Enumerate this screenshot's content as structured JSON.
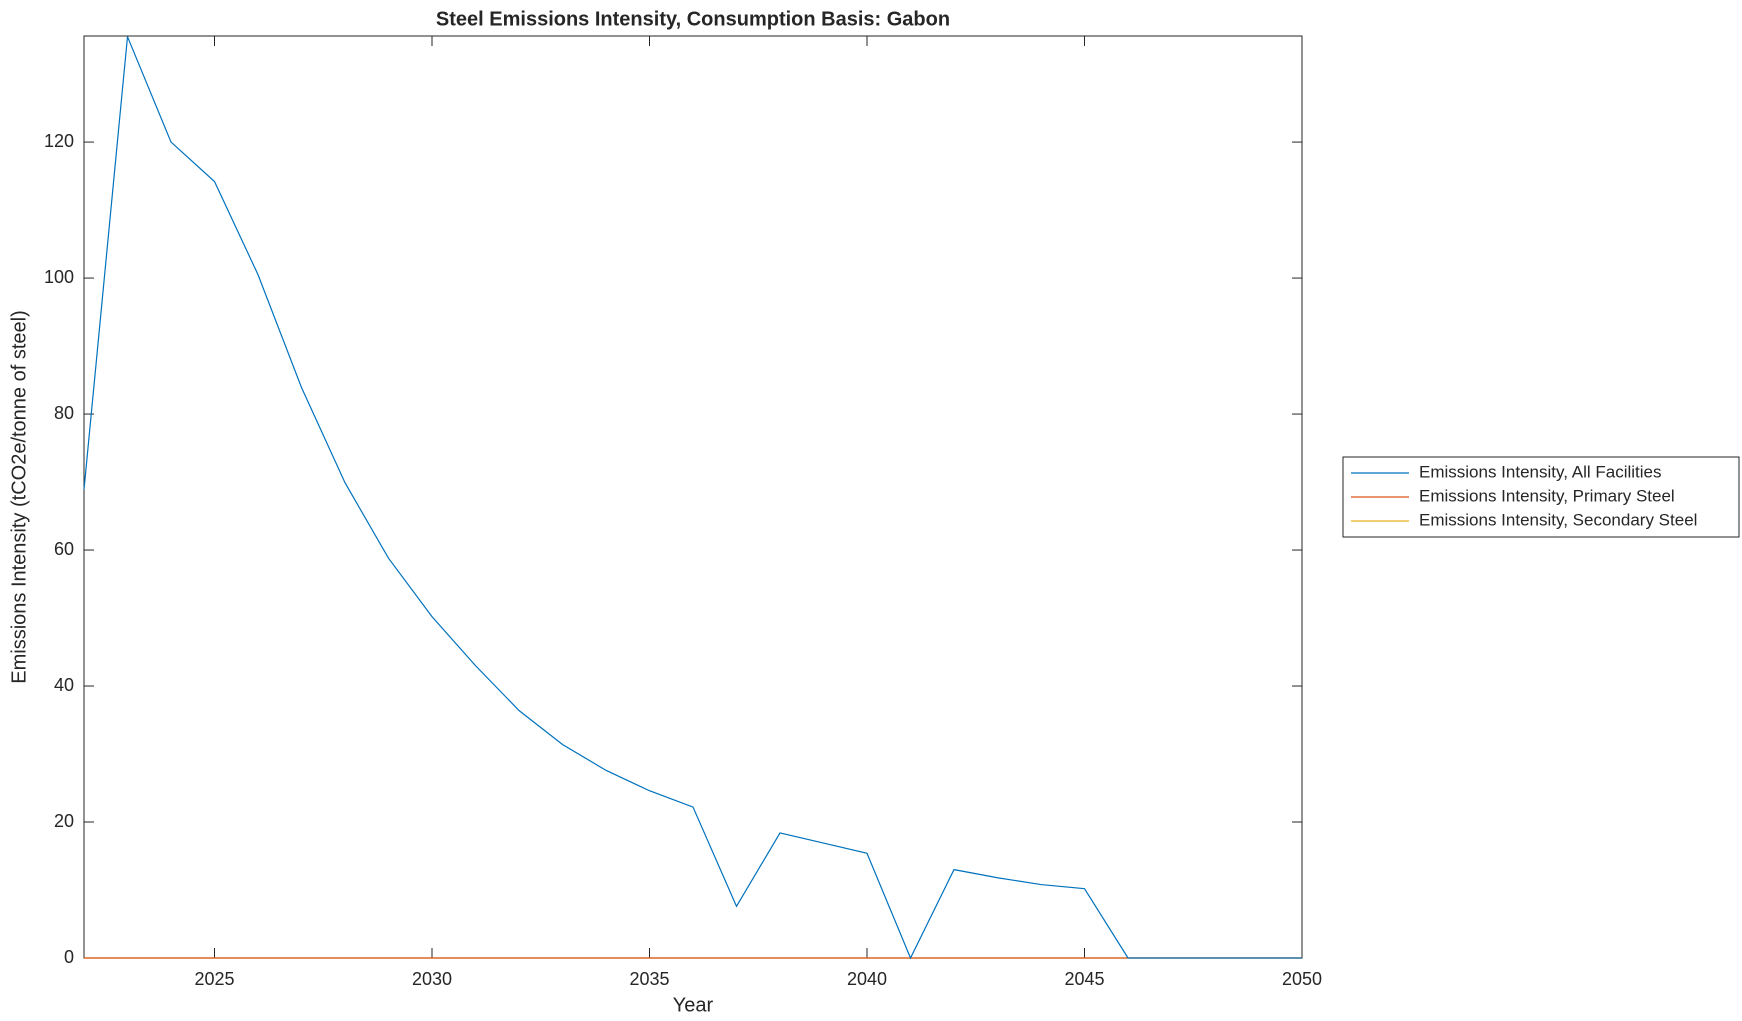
{
  "chart_data": {
    "type": "line",
    "title": "Steel Emissions Intensity, Consumption Basis: Gabon",
    "x_label": "Year",
    "y_label": "Emissions Intensity (tCO2e/tonne of steel)",
    "x": [
      2022,
      2023,
      2024,
      2025,
      2026,
      2027,
      2028,
      2029,
      2030,
      2031,
      2032,
      2033,
      2034,
      2035,
      2036,
      2037,
      2038,
      2039,
      2040,
      2041,
      2042,
      2043,
      2044,
      2045,
      2046,
      2047,
      2048,
      2049,
      2050
    ],
    "series": [
      {
        "name": "Emissions Intensity, All Facilities",
        "color": "#0072bd",
        "values": [
          68.9,
          135.5,
          120,
          114.2,
          100.5,
          83.9,
          69.9,
          58.8,
          50.2,
          43.0,
          36.4,
          31.4,
          27.6,
          24.6,
          22.2,
          7.6,
          18.4,
          16.9,
          15.4,
          0,
          13.0,
          11.8,
          10.8,
          10.2,
          0,
          0,
          0,
          0,
          0
        ]
      },
      {
        "name": "Emissions Intensity, Primary Steel",
        "color": "#d95319",
        "values": [
          0,
          0,
          0,
          0,
          0,
          0,
          0,
          0,
          0,
          0,
          0,
          0,
          0,
          0,
          0,
          0,
          0,
          0,
          0,
          0,
          0,
          0,
          0,
          0,
          0,
          0,
          0,
          0,
          0
        ]
      },
      {
        "name": "Emissions Intensity, Secondary Steel",
        "color": "#edb120",
        "values": [
          0,
          0,
          0,
          0,
          0,
          0,
          0,
          0,
          0,
          0,
          0,
          0,
          0,
          0,
          0,
          0,
          0,
          0,
          0,
          0,
          0,
          0,
          0,
          0,
          0,
          0,
          0,
          0,
          0
        ]
      }
    ],
    "xlim": [
      2022,
      2050
    ],
    "ylim": [
      0,
      135.6
    ],
    "xticks": [
      2025,
      2030,
      2035,
      2040,
      2045,
      2050
    ],
    "yticks": [
      0,
      20,
      40,
      60,
      80,
      100,
      120
    ],
    "legend": "outside-right"
  }
}
